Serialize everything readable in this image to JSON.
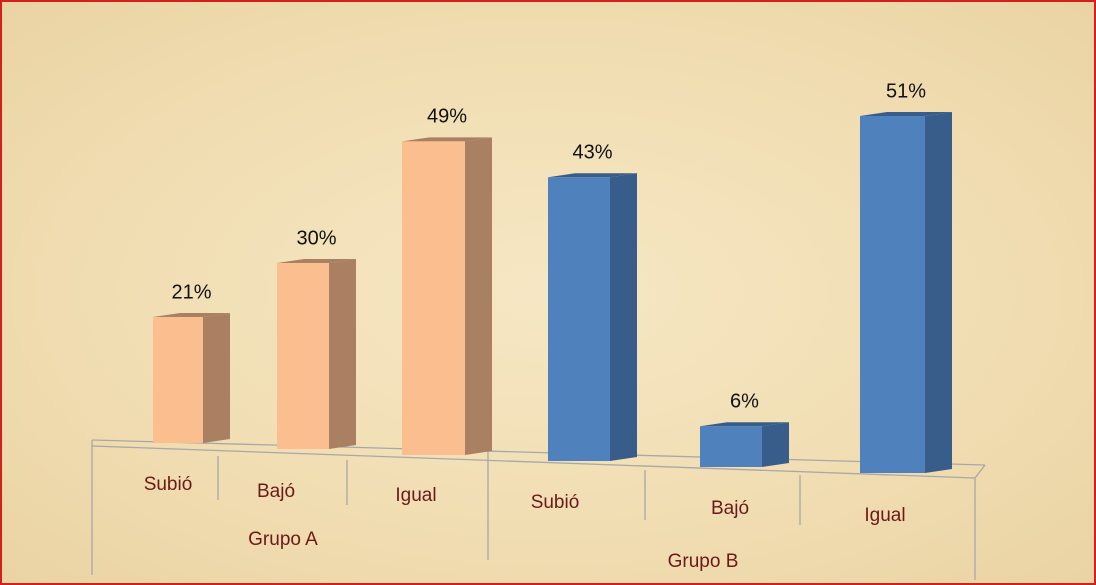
{
  "chart_data": {
    "type": "bar",
    "groups": [
      {
        "name": "Grupo A",
        "color": "#fbbe8e",
        "side_color": "#a98062",
        "categories": [
          "Subió",
          "Bajó",
          "Igual"
        ],
        "values": [
          21,
          30,
          49
        ],
        "value_labels": [
          "21%",
          "30%",
          "49%"
        ]
      },
      {
        "name": "Grupo B",
        "color": "#4f81bd",
        "side_color": "#385d8a",
        "categories": [
          "Subió",
          "Bajó",
          "Igual"
        ],
        "values": [
          43,
          6,
          51
        ],
        "value_labels": [
          "43%",
          "6%",
          "51%"
        ]
      }
    ]
  }
}
